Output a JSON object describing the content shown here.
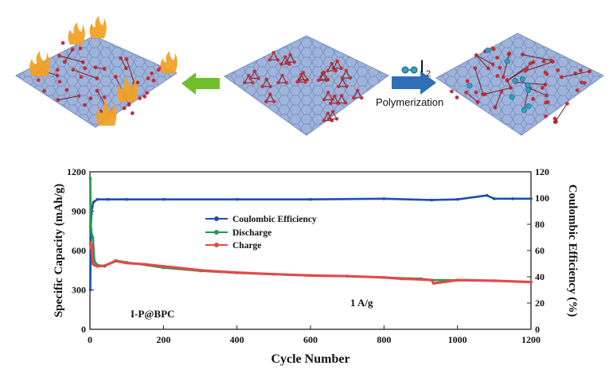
{
  "top_illustration": {
    "arrow_left_color": "#6fbf2a",
    "arrow_right_color": "#2f6fb8",
    "reagent_label": "I",
    "reagent_subscript": "2",
    "process_label": "Polymerization",
    "panel_color": "#9fb4db",
    "atom_color": "#c0303a",
    "iodine_color": "#29a3c4"
  },
  "chart_data": {
    "type": "line",
    "xlabel": "Cycle Number",
    "ylabel_left": "Specific Capacity (mAh/g)",
    "ylabel_right": "Coulombic Efficiency (%)",
    "xlim": [
      0,
      1200
    ],
    "ylim_left": [
      0,
      1200
    ],
    "ylim_right": [
      0,
      120
    ],
    "xticks": [
      0,
      200,
      400,
      600,
      800,
      1000,
      1200
    ],
    "yticks_left": [
      0,
      300,
      600,
      900,
      1200
    ],
    "yticks_right": [
      0,
      20,
      40,
      60,
      80,
      100,
      120
    ],
    "legend_position": "center-left",
    "annotations": [
      "I-P@BPC",
      "1 A/g"
    ],
    "series": [
      {
        "name": "Coulombic Efficiency",
        "axis": "right",
        "color": "#1f4fa8",
        "x": [
          1,
          2,
          4,
          6,
          10,
          20,
          50,
          100,
          200,
          400,
          600,
          800,
          930,
          1000,
          1080,
          1100,
          1150,
          1200
        ],
        "values": [
          30,
          75,
          88,
          93,
          97,
          99,
          99,
          99,
          99,
          99,
          99,
          99.5,
          98.5,
          99,
          102,
          99.5,
          99.5,
          99.5
        ]
      },
      {
        "name": "Discharge",
        "axis": "left",
        "color": "#1e9a4a",
        "x": [
          1,
          2,
          3,
          5,
          8,
          12,
          20,
          40,
          70,
          100,
          200,
          300,
          400,
          500,
          600,
          700,
          800,
          900,
          930,
          1000,
          1100,
          1200
        ],
        "values": [
          1150,
          850,
          760,
          720,
          700,
          520,
          490,
          480,
          525,
          510,
          470,
          445,
          430,
          420,
          410,
          405,
          395,
          385,
          375,
          375,
          370,
          360
        ]
      },
      {
        "name": "Charge",
        "axis": "left",
        "color": "#e24a4a",
        "x": [
          1,
          3,
          5,
          8,
          12,
          20,
          40,
          70,
          100,
          150,
          200,
          250,
          300,
          350,
          400,
          500,
          600,
          700,
          800,
          850,
          900,
          930,
          935,
          1000,
          1100,
          1200
        ],
        "values": [
          660,
          620,
          640,
          500,
          490,
          480,
          485,
          520,
          505,
          495,
          480,
          465,
          450,
          440,
          432,
          420,
          410,
          405,
          395,
          385,
          380,
          375,
          350,
          375,
          370,
          360
        ]
      }
    ]
  }
}
